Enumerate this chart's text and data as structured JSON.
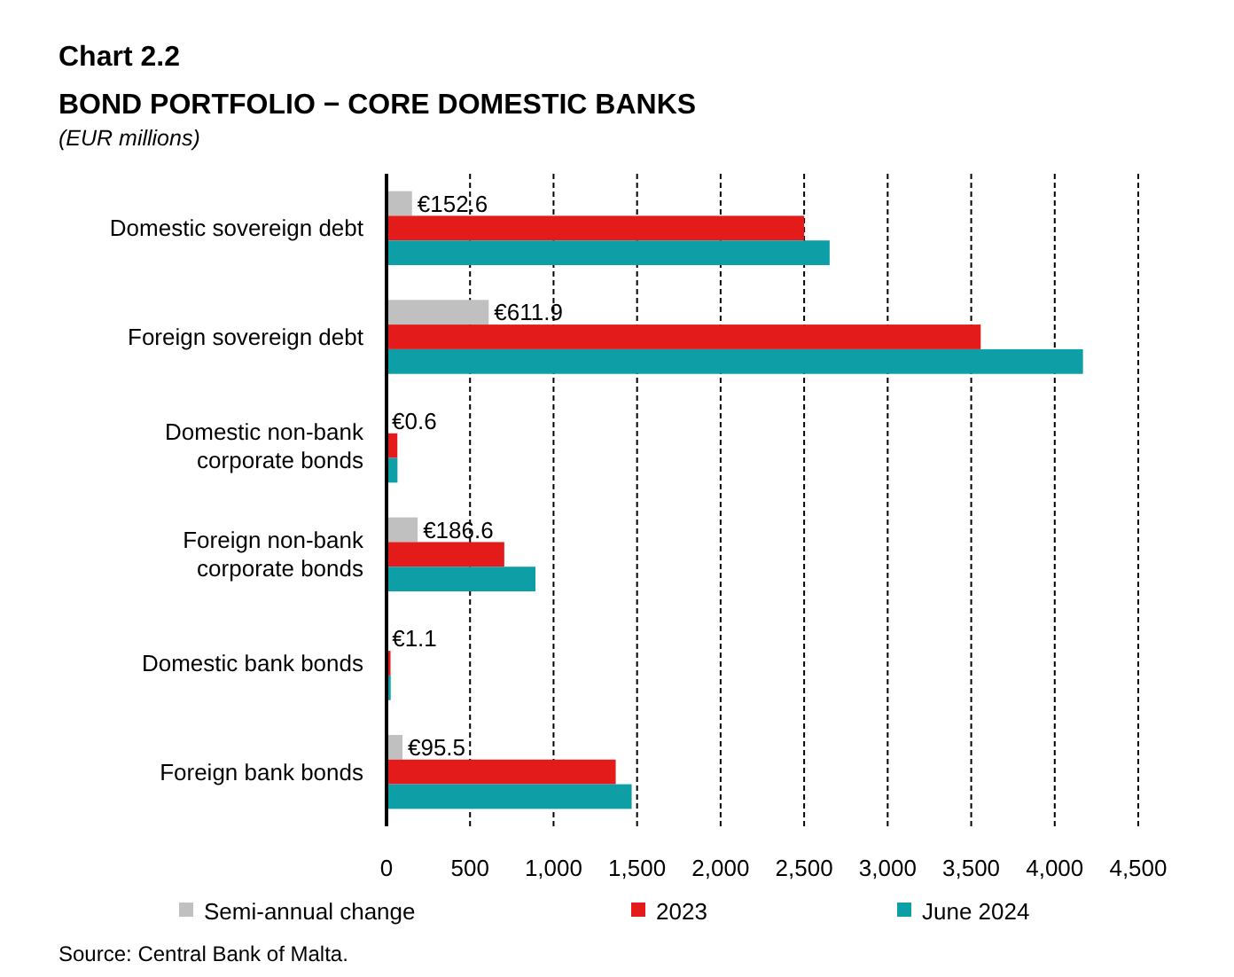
{
  "chart_data": {
    "type": "bar",
    "orientation": "horizontal",
    "title": "Chart 2.2",
    "subtitle": "BOND PORTFOLIO − CORE DOMESTIC BANKS",
    "ylabel": "(EUR millions)",
    "categories": [
      "Domestic sovereign debt",
      "Foreign sovereign debt",
      "Domestic non-bank corporate bonds",
      "Foreign non-bank corporate bonds",
      "Domestic bank bonds",
      "Foreign bank bonds"
    ],
    "series": [
      {
        "name": "Semi-annual change",
        "color": "#c0c0c0",
        "values": [
          152.6,
          611.9,
          0.6,
          186.6,
          1.1,
          95.5
        ],
        "value_labels": [
          "€152.6",
          "€611.9",
          "€0.6",
          "€186.6",
          "€1.1",
          "€95.5"
        ]
      },
      {
        "name": "2023",
        "color": "#e31b1b",
        "values": [
          2500,
          3557,
          65,
          705,
          24,
          1372
        ]
      },
      {
        "name": "June 2024",
        "color": "#0e9ea5",
        "values": [
          2652.6,
          4169,
          65.6,
          891.6,
          25.1,
          1467.5
        ]
      }
    ],
    "xlim": [
      0,
      4500
    ],
    "xticks": [
      0,
      500,
      {
        "value": 1000,
        "label": "1,000"
      },
      {
        "value": 1500,
        "label": "1,500"
      },
      {
        "value": 2000,
        "label": "2,000"
      },
      {
        "value": 2500,
        "label": "2,500"
      },
      {
        "value": 3000,
        "label": "3,000"
      },
      {
        "value": 3500,
        "label": "3,500"
      },
      {
        "value": 4000,
        "label": "4,000"
      },
      {
        "value": 4500,
        "label": "4,500"
      }
    ],
    "grid": "x",
    "legend": "bottom",
    "annotations": [
      "Source: Central Bank of Malta."
    ]
  }
}
